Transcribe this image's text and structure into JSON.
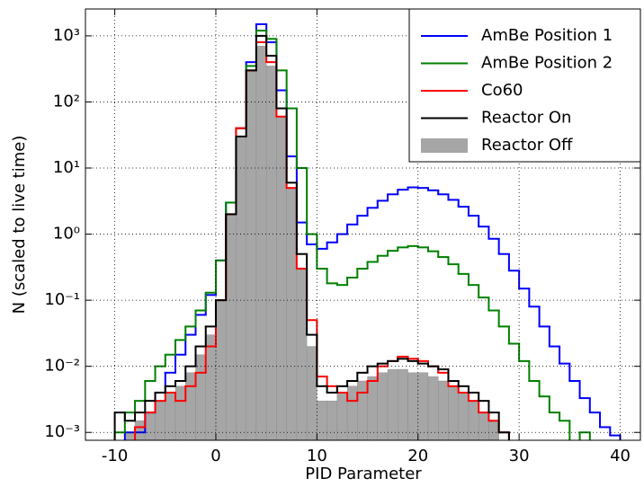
{
  "chart_data": {
    "type": "histogram",
    "xlabel": "PID Parameter",
    "ylabel": "N (scaled to live time)",
    "yscale": "log",
    "grid": true,
    "legend": "upper right",
    "xlim": [
      -12.9,
      42
    ],
    "ylim": [
      0.00076,
      2550
    ],
    "xticks": [
      -10,
      0,
      10,
      20,
      30,
      40
    ],
    "yticks": [
      {
        "value": 0.001,
        "label": "10⁻³"
      },
      {
        "value": 0.01,
        "label": "10⁻²"
      },
      {
        "value": 0.1,
        "label": "10⁻¹"
      },
      {
        "value": 1,
        "label": "10⁰"
      },
      {
        "value": 10,
        "label": "10¹"
      },
      {
        "value": 100,
        "label": "10²"
      },
      {
        "value": 1000,
        "label": "10³"
      }
    ],
    "bins": [
      -12,
      -11,
      -10,
      -9,
      -8,
      -7,
      -6,
      -5,
      -4,
      -3,
      -2,
      -1,
      0,
      1,
      2,
      3,
      4,
      5,
      6,
      7,
      8,
      9,
      10,
      11,
      12,
      13,
      14,
      15,
      16,
      17,
      18,
      19,
      20,
      21,
      22,
      23,
      24,
      25,
      26,
      27,
      28,
      29,
      30,
      31,
      32,
      33,
      34,
      35,
      36,
      37,
      38,
      39,
      40,
      41
    ],
    "series": [
      {
        "name": "AmBe Position 1",
        "color": "#0000ff",
        "histtype": "step",
        "values": [
          null,
          null,
          null,
          0.001,
          0.001,
          0.002,
          0.004,
          0.008,
          0.015,
          0.03,
          0.06,
          0.12,
          0.4,
          3,
          40,
          400,
          1500,
          800,
          150,
          15,
          1.5,
          0.7,
          0.6,
          0.75,
          1.0,
          1.4,
          1.9,
          2.5,
          3.2,
          4.0,
          4.7,
          5.1,
          5.0,
          4.6,
          4.0,
          3.3,
          2.6,
          1.9,
          1.3,
          0.85,
          0.5,
          0.28,
          0.15,
          0.08,
          0.04,
          0.02,
          0.011,
          0.006,
          0.0033,
          0.002,
          0.0012,
          0.0009,
          null
        ]
      },
      {
        "name": "AmBe Position 2",
        "color": "#008000",
        "histtype": "step",
        "values": [
          null,
          null,
          0.001,
          0.002,
          0.003,
          0.006,
          0.01,
          0.015,
          0.025,
          0.04,
          0.07,
          0.13,
          0.4,
          3,
          40,
          350,
          1200,
          900,
          300,
          80,
          10,
          1,
          0.3,
          0.18,
          0.17,
          0.22,
          0.3,
          0.38,
          0.47,
          0.56,
          0.63,
          0.66,
          0.63,
          0.55,
          0.45,
          0.35,
          0.25,
          0.17,
          0.11,
          0.07,
          0.04,
          0.022,
          0.012,
          0.006,
          0.0035,
          0.002,
          0.0015,
          null,
          0.001,
          null,
          null,
          null,
          null
        ]
      },
      {
        "name": "Co60",
        "color": "#ff0000",
        "histtype": "step",
        "values": [
          null,
          null,
          null,
          null,
          0.0012,
          0.002,
          0.003,
          0.004,
          0.003,
          0.005,
          0.008,
          0.02,
          0.1,
          2,
          40,
          300,
          800,
          400,
          60,
          5,
          0.3,
          0.05,
          0.007,
          0.005,
          0.004,
          0.003,
          0.004,
          0.006,
          0.01,
          0.012,
          0.014,
          0.013,
          0.012,
          0.01,
          0.008,
          0.005,
          0.004,
          0.003,
          0.002,
          0.0015,
          0.001,
          null,
          null,
          null,
          null,
          null,
          null,
          null,
          null,
          null,
          null,
          null,
          null
        ]
      },
      {
        "name": "Reactor On",
        "color": "#000000",
        "histtype": "step",
        "values": [
          null,
          null,
          0.002,
          0.0015,
          0.002,
          0.003,
          0.004,
          0.005,
          0.006,
          0.01,
          0.02,
          0.04,
          0.1,
          2,
          30,
          300,
          1000,
          500,
          80,
          6,
          0.5,
          0.03,
          0.005,
          0.004,
          0.005,
          0.006,
          0.008,
          0.01,
          0.011,
          0.012,
          0.013,
          0.012,
          0.011,
          0.01,
          0.009,
          0.006,
          0.005,
          0.004,
          0.003,
          0.002,
          0.001,
          null,
          null,
          null,
          null,
          null,
          null,
          null,
          null,
          null,
          null,
          null,
          null
        ]
      },
      {
        "name": "Reactor Off",
        "color": "#a6a6a6",
        "histtype": "stepfilled",
        "values": [
          null,
          null,
          null,
          0.001,
          0.0015,
          0.002,
          0.003,
          0.004,
          0.005,
          0.008,
          0.015,
          0.03,
          0.1,
          2,
          30,
          300,
          700,
          350,
          60,
          5,
          0.3,
          0.02,
          0.003,
          0.003,
          0.004,
          0.005,
          0.006,
          0.007,
          0.008,
          0.009,
          0.009,
          0.008,
          0.008,
          0.007,
          0.006,
          0.005,
          0.004,
          0.003,
          0.002,
          0.0015,
          null,
          null,
          null,
          null,
          null,
          null,
          null,
          null,
          null,
          null,
          null,
          null,
          null
        ]
      }
    ]
  }
}
